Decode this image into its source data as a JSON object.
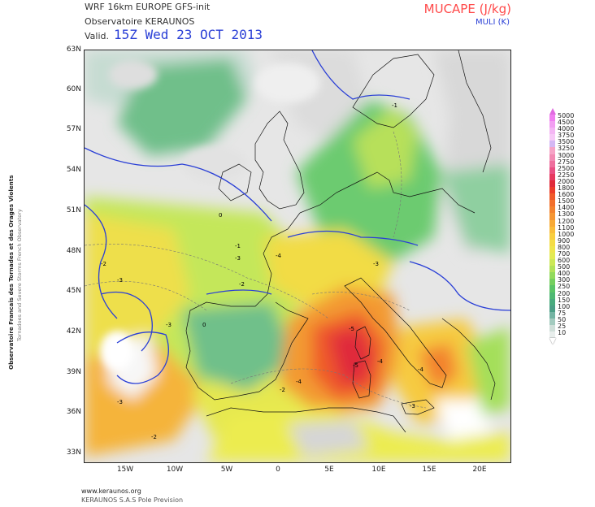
{
  "header": {
    "line1": "WRF 16km EUROPE  GFS-init",
    "line2": "Observatoire KERAUNOS",
    "line3": "Valid.",
    "valid_date": "15Z Wed 23 OCT 2013"
  },
  "parameter": {
    "title": "MUCAPE (J/kg)",
    "subtitle": "MULI (K)"
  },
  "lat_labels": [
    "63N",
    "60N",
    "57N",
    "54N",
    "51N",
    "48N",
    "45N",
    "42N",
    "39N",
    "36N",
    "33N"
  ],
  "lon_labels": [
    "15W",
    "10W",
    "5W",
    "0",
    "5E",
    "10E",
    "15E",
    "20E"
  ],
  "side_text": {
    "line1": "Observatoire Francais des Tornades et des Orages Violents",
    "line2": "Tornadoes and Severe Storms French Observatory"
  },
  "footer": {
    "line1": "www.keraunos.org",
    "line2": "KERAUNOS S.A.S Pole Prevision"
  },
  "legend": {
    "values": [
      "5000",
      "4500",
      "4000",
      "3750",
      "3500",
      "3250",
      "3000",
      "2750",
      "2500",
      "2250",
      "2000",
      "1800",
      "1600",
      "1500",
      "1400",
      "1300",
      "1200",
      "1100",
      "1000",
      "900",
      "800",
      "700",
      "600",
      "500",
      "400",
      "300",
      "250",
      "200",
      "150",
      "100",
      "75",
      "50",
      "25",
      "10"
    ],
    "colors": [
      "#f07ef0",
      "#f29ef2",
      "#f4b6f4",
      "#f7c9f7",
      "#d4b8f4",
      "#f6a3c6",
      "#f28ab3",
      "#ee6e9d",
      "#e94f83",
      "#e6385f",
      "#e02a3a",
      "#ec3c2a",
      "#f05a2a",
      "#f26f2c",
      "#f3822e",
      "#f59633",
      "#f7aa36",
      "#f9bd3a",
      "#f8ce3f",
      "#f4dc45",
      "#eee54c",
      "#e3ea52",
      "#cce857",
      "#b2e25a",
      "#92da5c",
      "#74cf5e",
      "#5ac467",
      "#4fb873",
      "#49ab7e",
      "#4b9f86",
      "#74b4a3",
      "#a3cbbf",
      "#cfdfd9",
      "#e8eeec"
    ],
    "top_color": "#e06ae0",
    "bottom_color": "#ffffff"
  },
  "map_annotations": [
    "-1",
    "-2",
    "-3",
    "-4",
    "-5",
    "0"
  ],
  "colors": {
    "coast": "#2a3fd6",
    "title_red": "#ff4a4a",
    "date_blue": "#2a3fd6"
  }
}
